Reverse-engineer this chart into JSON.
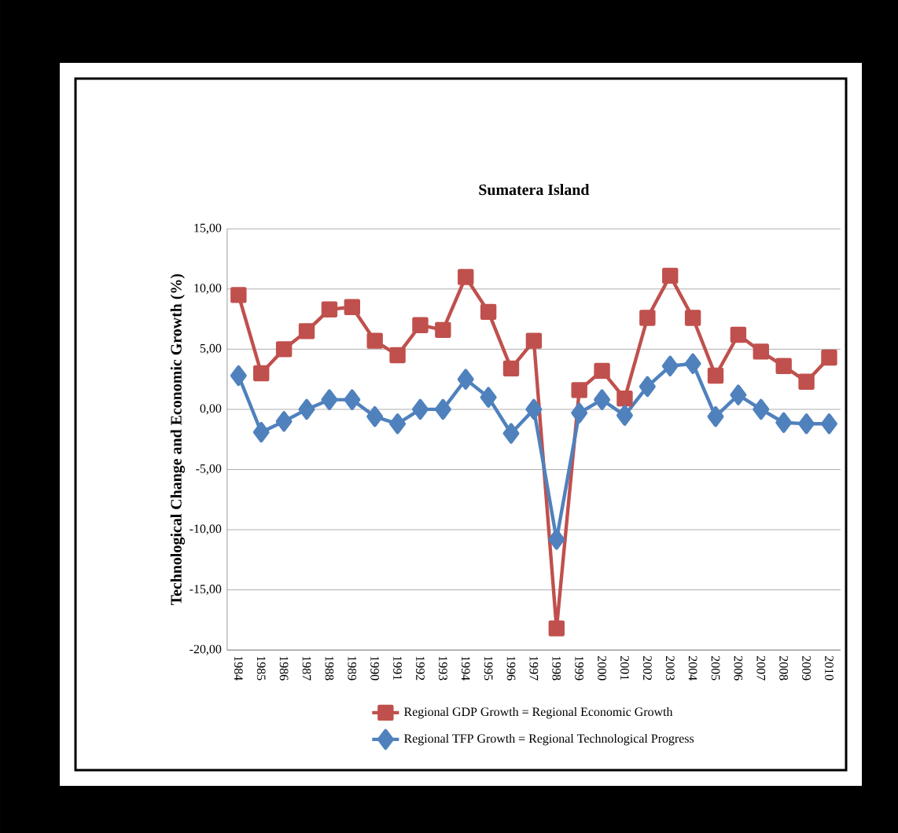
{
  "chart_data": {
    "type": "line",
    "title": "Sumatera Island",
    "ylabel": "Technological Change and Economic Growth (%)",
    "categories": [
      "1984",
      "1985",
      "1986",
      "1987",
      "1988",
      "1989",
      "1990",
      "1991",
      "1992",
      "1993",
      "1994",
      "1995",
      "1996",
      "1997",
      "1998",
      "1999",
      "2000",
      "2001",
      "2002",
      "2003",
      "2004",
      "2005",
      "2006",
      "2007",
      "2008",
      "2009",
      "2010"
    ],
    "series": [
      {
        "name": "Regional GDP Growth = Regional Economic Growth",
        "color": "#c0504d",
        "marker": "square",
        "values": [
          9.5,
          3.0,
          5.0,
          6.5,
          8.3,
          8.5,
          5.7,
          4.5,
          7.0,
          6.6,
          11.0,
          8.1,
          3.4,
          5.7,
          -18.2,
          1.6,
          3.2,
          0.9,
          7.6,
          11.1,
          7.6,
          2.8,
          6.2,
          4.8,
          3.6,
          2.3,
          4.3
        ]
      },
      {
        "name": "Regional TFP Growth = Regional Technological Progress",
        "color": "#4f81bd",
        "marker": "diamond",
        "values": [
          2.8,
          -1.9,
          -1.0,
          0.0,
          0.8,
          0.8,
          -0.6,
          -1.2,
          0.0,
          0.0,
          2.5,
          1.0,
          -2.0,
          0.0,
          -10.8,
          -0.3,
          0.8,
          -0.5,
          1.9,
          3.6,
          3.8,
          -0.6,
          1.2,
          0.0,
          -1.1,
          -1.2,
          -1.2
        ]
      }
    ],
    "ylim": [
      -20,
      15
    ],
    "yticks": [
      {
        "value": -20,
        "label": "-20,00"
      },
      {
        "value": -15,
        "label": "-15,00"
      },
      {
        "value": -10,
        "label": "-10,00"
      },
      {
        "value": -5,
        "label": "-5,00"
      },
      {
        "value": 0,
        "label": "0,00"
      },
      {
        "value": 5,
        "label": "5,00"
      },
      {
        "value": 10,
        "label": "10,00"
      },
      {
        "value": 15,
        "label": "15,00"
      }
    ],
    "grid": "y",
    "legend": "bottom"
  }
}
